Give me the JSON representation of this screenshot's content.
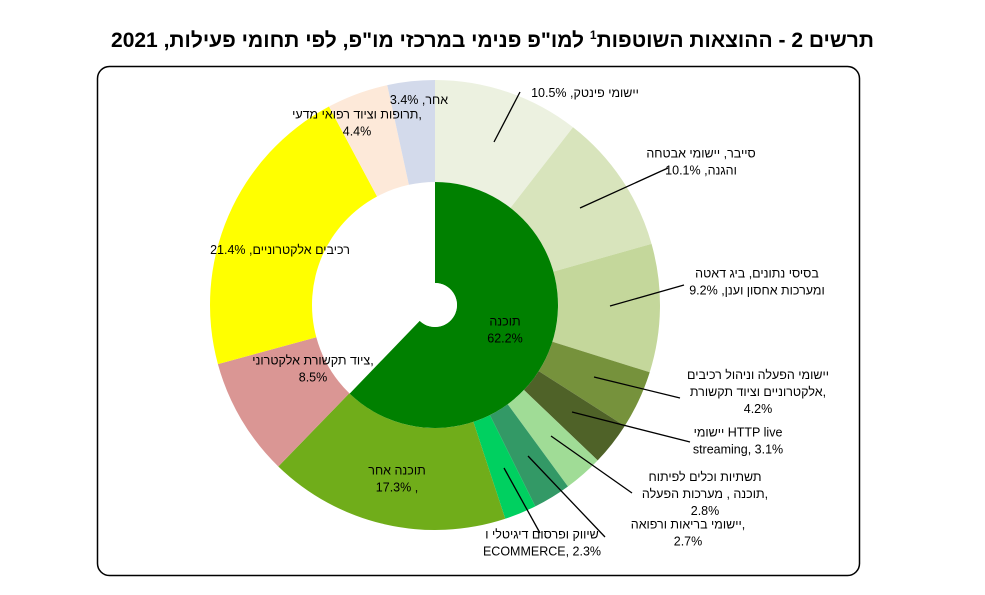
{
  "title": {
    "before": "תרשים 2 - ההוצאות השוטפות",
    "sup": "1",
    "after": " למו\"פ פנימי במרכזי מו\"פ, לפי תחומי פעילות, 2021"
  },
  "chart_data": {
    "type": "sunburst",
    "title": "תרשים 2 - ההוצאות השוטפות1 למו\"פ פנימי במרכזי מו\"פ, לפי תחומי פעילות, 2021",
    "unit": "%",
    "inner_ring": [
      {
        "name": "תוכנה",
        "value": 62.2,
        "color": "#008000",
        "label_lines": [
          "תוכנה",
          "62.2%"
        ]
      }
    ],
    "outer_ring": [
      {
        "name": "יישומי פינטק",
        "value": 10.5,
        "color": "#ECF1E0",
        "label_lines": [
          "יישומי פינטק, 10.5%"
        ]
      },
      {
        "name": "סייבר, יישומי אבטחה והגנה",
        "value": 10.1,
        "color": "#D8E4BC",
        "label_lines": [
          "סייבר, יישומי אבטחה",
          "והגנה, 10.1%"
        ]
      },
      {
        "name": "בסיסי נתונים, ביג דאטה ומערכות אחסון וענן",
        "value": 9.2,
        "color": "#C4D79B",
        "label_lines": [
          "בסיסי נתונים, ביג דאטה",
          "ומערכות אחסון וענן, 9.2%"
        ]
      },
      {
        "name": "יישומי הפעלה וניהול רכיבים אלקטרוניים וציוד תקשורת",
        "value": 4.2,
        "color": "#76923C",
        "label_lines": [
          "יישומי הפעלה וניהול רכיבים",
          "אלקטרוניים וציוד תקשורת,",
          "4.2%"
        ]
      },
      {
        "name": "יישומי HTTP live streaming",
        "value": 3.1,
        "color": "#4F6228",
        "label_lines": [
          "יישומי  HTTP live",
          "streaming, 3.1%"
        ]
      },
      {
        "name": "תשתיות וכלים לפיתוח תוכנה, מערכות הפעלה",
        "value": 2.8,
        "color": "#A0DC96",
        "label_lines": [
          "תשתיות וכלים לפיתוח",
          "תוכנה , מערכות הפעלה,",
          "2.8%"
        ]
      },
      {
        "name": "יישומי בריאות ורפואה",
        "value": 2.7,
        "color": "#339966",
        "label_lines": [
          "יישומי בריאות ורפואה,",
          "2.7%"
        ]
      },
      {
        "name": "שיווק ופרסום דיגיטלי ו ECOMMERCE",
        "value": 2.3,
        "color": "#00D060",
        "label_lines": [
          "שיווק ופרסום דיגיטלי ו",
          "ECOMMERCE, 2.3%"
        ]
      },
      {
        "name": "תוכנה אחר",
        "value": 17.3,
        "color": "#70AD1A",
        "label_lines": [
          "תוכנה אחר",
          "17.3%  ,"
        ]
      },
      {
        "name": "ציוד תקשורת אלקטרוני",
        "value": 8.5,
        "color": "#DA9694",
        "label_lines": [
          "ציוד תקשורת אלקטרוני,",
          "8.5%"
        ]
      },
      {
        "name": "רכיבים אלקטרוניים",
        "value": 21.4,
        "color": "#FFFF00",
        "label_lines": [
          "21.4% ,רכיבים אלקטרוניים"
        ]
      },
      {
        "name": "תרופות וציוד רפואי מדעי",
        "value": 4.4,
        "color": "#FDE9D9",
        "label_lines": [
          "תרופות וציוד רפואי מדעי,",
          "4.4%"
        ]
      },
      {
        "name": "אחר",
        "value": 3.4,
        "color": "#D3DAEB",
        "label_lines": [
          "אחר, 3.4%"
        ]
      }
    ]
  }
}
